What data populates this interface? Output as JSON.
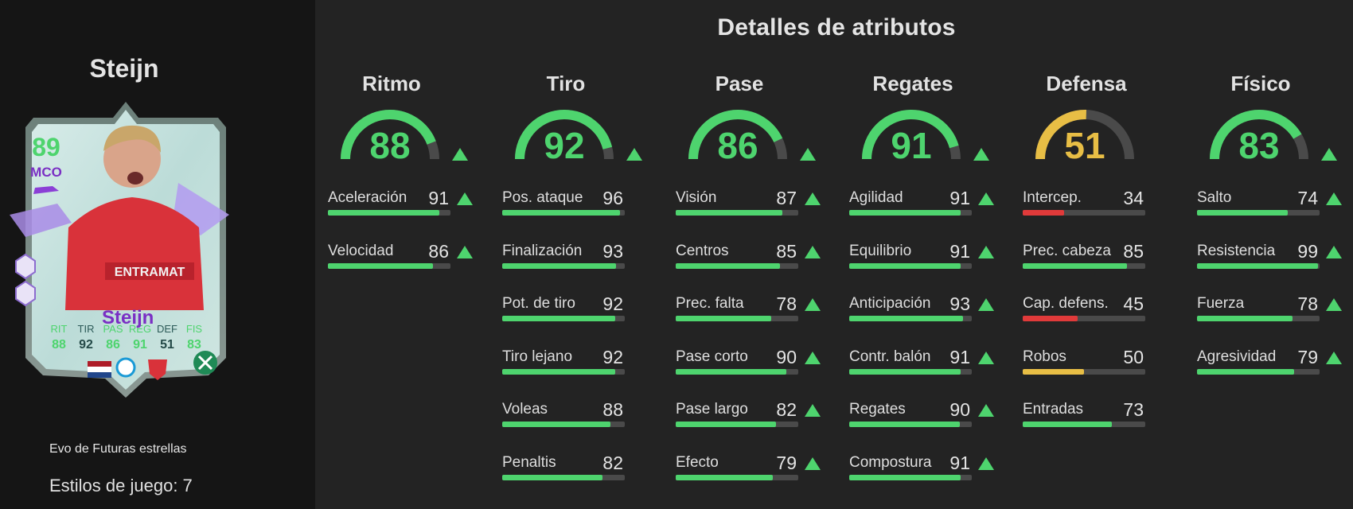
{
  "sidebar": {
    "player_name": "Steijn",
    "card": {
      "rating": "89",
      "position": "MCO",
      "name": "Steijn",
      "sponsor": "ENTRAMAT",
      "stat_labels": [
        "RIT",
        "TIR",
        "PAS",
        "REG",
        "DEF",
        "FIS"
      ],
      "stat_values": [
        "88",
        "92",
        "86",
        "91",
        "51",
        "83"
      ]
    },
    "evo_label": "Evo de Futuras estrellas",
    "playstyles_label": "Estilos de juego: 7"
  },
  "main_title": "Detalles de atributos",
  "colors": {
    "green": "#4ed46e",
    "yellow": "#e8be45",
    "red": "#e03a3a",
    "track": "#4a4a4a"
  },
  "categories": [
    {
      "title": "Ritmo",
      "value": 88,
      "color": "green",
      "upgraded": true,
      "attributes": [
        {
          "label": "Aceleración",
          "value": 91,
          "upgraded": true
        },
        {
          "label": "Velocidad",
          "value": 86,
          "upgraded": true
        }
      ]
    },
    {
      "title": "Tiro",
      "value": 92,
      "color": "green",
      "upgraded": true,
      "attributes": [
        {
          "label": "Pos. ataque",
          "value": 96,
          "upgraded": false
        },
        {
          "label": "Finalización",
          "value": 93,
          "upgraded": false
        },
        {
          "label": "Pot. de tiro",
          "value": 92,
          "upgraded": false
        },
        {
          "label": "Tiro lejano",
          "value": 92,
          "upgraded": false
        },
        {
          "label": "Voleas",
          "value": 88,
          "upgraded": false
        },
        {
          "label": "Penaltis",
          "value": 82,
          "upgraded": false
        }
      ]
    },
    {
      "title": "Pase",
      "value": 86,
      "color": "green",
      "upgraded": true,
      "attributes": [
        {
          "label": "Visión",
          "value": 87,
          "upgraded": true
        },
        {
          "label": "Centros",
          "value": 85,
          "upgraded": true
        },
        {
          "label": "Prec. falta",
          "value": 78,
          "upgraded": true
        },
        {
          "label": "Pase corto",
          "value": 90,
          "upgraded": true
        },
        {
          "label": "Pase largo",
          "value": 82,
          "upgraded": true
        },
        {
          "label": "Efecto",
          "value": 79,
          "upgraded": true
        }
      ]
    },
    {
      "title": "Regates",
      "value": 91,
      "color": "green",
      "upgraded": true,
      "attributes": [
        {
          "label": "Agilidad",
          "value": 91,
          "upgraded": true
        },
        {
          "label": "Equilibrio",
          "value": 91,
          "upgraded": true
        },
        {
          "label": "Anticipación",
          "value": 93,
          "upgraded": true
        },
        {
          "label": "Contr. balón",
          "value": 91,
          "upgraded": true
        },
        {
          "label": "Regates",
          "value": 90,
          "upgraded": true
        },
        {
          "label": "Compostura",
          "value": 91,
          "upgraded": true
        }
      ]
    },
    {
      "title": "Defensa",
      "value": 51,
      "color": "yellow",
      "upgraded": false,
      "attributes": [
        {
          "label": "Intercep.",
          "value": 34,
          "upgraded": false
        },
        {
          "label": "Prec. cabeza",
          "value": 85,
          "upgraded": false
        },
        {
          "label": "Cap. defens.",
          "value": 45,
          "upgraded": false
        },
        {
          "label": "Robos",
          "value": 50,
          "upgraded": false
        },
        {
          "label": "Entradas",
          "value": 73,
          "upgraded": false
        }
      ]
    },
    {
      "title": "Físico",
      "value": 83,
      "color": "green",
      "upgraded": true,
      "attributes": [
        {
          "label": "Salto",
          "value": 74,
          "upgraded": true
        },
        {
          "label": "Resistencia",
          "value": 99,
          "upgraded": true
        },
        {
          "label": "Fuerza",
          "value": 78,
          "upgraded": true
        },
        {
          "label": "Agresividad",
          "value": 79,
          "upgraded": true
        }
      ]
    }
  ]
}
